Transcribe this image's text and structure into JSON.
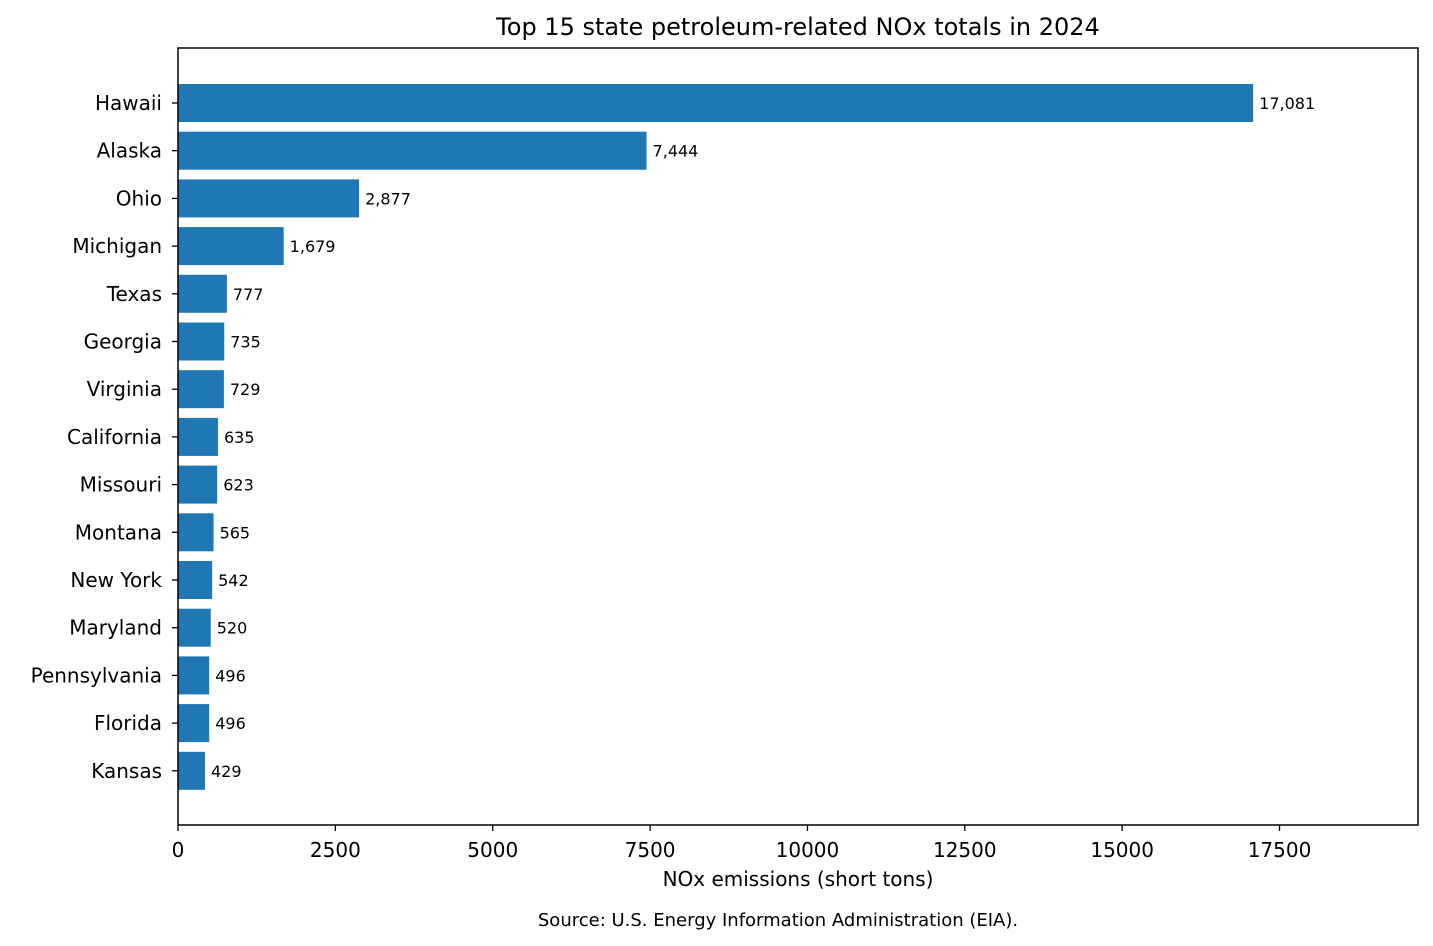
{
  "chart_data": {
    "type": "bar",
    "orientation": "horizontal",
    "title": "Top 15 state petroleum-related NOx totals in 2024",
    "xlabel": "NOx emissions (short tons)",
    "ylabel": "",
    "xlim": [
      0,
      19700
    ],
    "xticks": [
      0,
      2500,
      5000,
      7500,
      10000,
      12500,
      15000,
      17500
    ],
    "xtick_labels": [
      "0",
      "2500",
      "5000",
      "7500",
      "10000",
      "12500",
      "15000",
      "17500"
    ],
    "categories": [
      "Hawaii",
      "Alaska",
      "Ohio",
      "Michigan",
      "Texas",
      "Georgia",
      "Virginia",
      "California",
      "Missouri",
      "Montana",
      "New York",
      "Maryland",
      "Pennsylvania",
      "Florida",
      "Kansas"
    ],
    "values": [
      17081,
      7444,
      2877,
      1679,
      777,
      735,
      729,
      635,
      623,
      565,
      542,
      520,
      496,
      496,
      429
    ],
    "value_labels": [
      "17,081",
      "7,444",
      "2,877",
      "1,679",
      "777",
      "735",
      "729",
      "635",
      "623",
      "565",
      "542",
      "520",
      "496",
      "496",
      "429"
    ],
    "bar_color": "#1f77b4",
    "grid": false,
    "legend": "none"
  },
  "source_note": "Source: U.S. Energy Information Administration (EIA)."
}
